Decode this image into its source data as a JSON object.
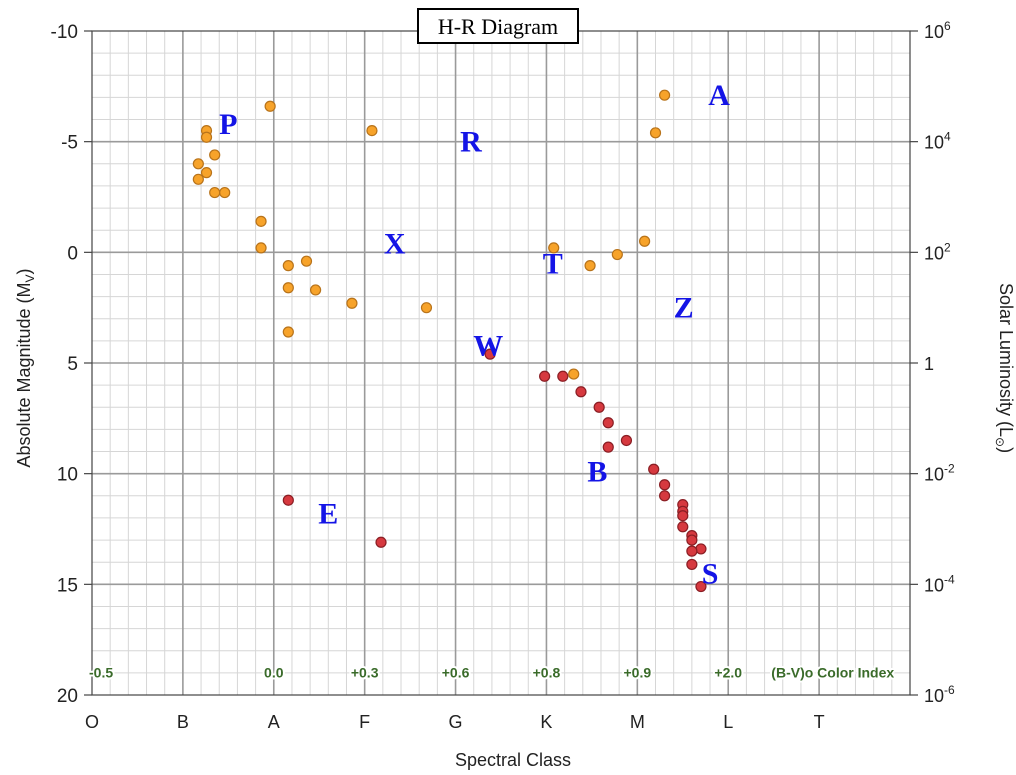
{
  "colors": {
    "giant_star": "#f7a32a",
    "giant_star_edge": "#b8731a",
    "dwarf_star": "#d6393f",
    "dwarf_star_edge": "#8a1e24",
    "region_letter": "#1414e6",
    "color_index": "#3a6b2a",
    "major_grid": "#9a9a9a",
    "minor_grid": "#d6d6d6"
  },
  "chart_data": {
    "type": "scatter",
    "title": "H-R Diagram",
    "xlabel": "Spectral Class",
    "ylabel": "Absolute Magnitude (M",
    "ylabel_sub": "V",
    "ylabel_close": ")",
    "y2label": "Solar Luminosity (L",
    "y2label_sub": "⊙",
    "y2label_close": ")",
    "xlim": [
      0,
      9
    ],
    "ylim": [
      20,
      -10
    ],
    "grid": true,
    "x_categories": [
      "O",
      "B",
      "A",
      "F",
      "G",
      "K",
      "M",
      "L",
      "T"
    ],
    "y_ticks": [
      "-10",
      "-5",
      "0",
      "5",
      "10",
      "15",
      "20"
    ],
    "y_tick_values": [
      -10,
      -5,
      0,
      5,
      10,
      15,
      20
    ],
    "luminosity_ticks": [
      {
        "base": "10",
        "exp": "6",
        "mag": -10
      },
      {
        "base": "10",
        "exp": "4",
        "mag": -5
      },
      {
        "base": "10",
        "exp": "2",
        "mag": 0
      },
      {
        "base": "1",
        "exp": "",
        "mag": 5
      },
      {
        "base": "10",
        "exp": "-2",
        "mag": 10
      },
      {
        "base": "10",
        "exp": "-4",
        "mag": 15
      },
      {
        "base": "10",
        "exp": "-6",
        "mag": 20
      }
    ],
    "color_index_labels": [
      {
        "text": "-0.5",
        "x": 0.1
      },
      {
        "text": "0.0",
        "x": 2.0
      },
      {
        "text": "+0.3",
        "x": 3.0
      },
      {
        "text": "+0.6",
        "x": 4.0
      },
      {
        "text": "+0.8",
        "x": 5.0
      },
      {
        "text": "+0.9",
        "x": 6.0
      },
      {
        "text": "+2.0",
        "x": 7.0
      },
      {
        "text": "(B-V)o Color Index",
        "x": 8.15
      }
    ],
    "color_index_y": 19.2,
    "region_labels": [
      {
        "text": "P",
        "x": 1.5,
        "y": -5.8
      },
      {
        "text": "R",
        "x": 4.17,
        "y": -5.0
      },
      {
        "text": "A",
        "x": 6.9,
        "y": -7.1
      },
      {
        "text": "X",
        "x": 3.33,
        "y": -0.4
      },
      {
        "text": "T",
        "x": 5.07,
        "y": 0.5
      },
      {
        "text": "Z",
        "x": 6.51,
        "y": 2.5
      },
      {
        "text": "W",
        "x": 4.36,
        "y": 4.2
      },
      {
        "text": "B",
        "x": 5.56,
        "y": 9.9
      },
      {
        "text": "E",
        "x": 2.6,
        "y": 11.8
      },
      {
        "text": "S",
        "x": 6.8,
        "y": 14.5
      }
    ],
    "series": [
      {
        "type": "giant",
        "points": [
          [
            1.26,
            -5.5
          ],
          [
            1.26,
            -5.2
          ],
          [
            1.17,
            -4.0
          ],
          [
            1.26,
            -3.6
          ],
          [
            1.35,
            -4.4
          ],
          [
            1.17,
            -3.3
          ],
          [
            1.35,
            -2.7
          ],
          [
            1.46,
            -2.7
          ],
          [
            1.96,
            -6.6
          ],
          [
            1.86,
            -1.4
          ],
          [
            1.86,
            -0.2
          ],
          [
            2.16,
            0.6
          ],
          [
            2.36,
            0.4
          ],
          [
            2.16,
            1.6
          ],
          [
            2.46,
            1.7
          ],
          [
            2.86,
            2.3
          ],
          [
            3.68,
            2.5
          ],
          [
            2.16,
            3.6
          ],
          [
            3.08,
            -5.5
          ],
          [
            5.08,
            -0.2
          ],
          [
            5.48,
            0.6
          ],
          [
            5.78,
            0.1
          ],
          [
            6.08,
            -0.5
          ],
          [
            6.3,
            -7.1
          ],
          [
            6.2,
            -5.4
          ],
          [
            5.3,
            5.5
          ]
        ]
      },
      {
        "type": "dwarf",
        "points": [
          [
            4.98,
            5.6
          ],
          [
            5.18,
            5.6
          ],
          [
            5.38,
            6.3
          ],
          [
            5.58,
            7.0
          ],
          [
            5.68,
            7.7
          ],
          [
            5.88,
            8.5
          ],
          [
            5.68,
            8.8
          ],
          [
            6.18,
            9.8
          ],
          [
            6.3,
            10.5
          ],
          [
            6.3,
            11.0
          ],
          [
            6.5,
            11.4
          ],
          [
            6.5,
            11.7
          ],
          [
            6.5,
            11.9
          ],
          [
            6.5,
            12.4
          ],
          [
            6.6,
            12.8
          ],
          [
            6.6,
            13.0
          ],
          [
            6.7,
            13.4
          ],
          [
            6.6,
            13.5
          ],
          [
            6.6,
            14.1
          ],
          [
            6.7,
            15.1
          ],
          [
            2.16,
            11.2
          ],
          [
            3.18,
            13.1
          ],
          [
            4.38,
            4.6
          ]
        ]
      }
    ]
  }
}
